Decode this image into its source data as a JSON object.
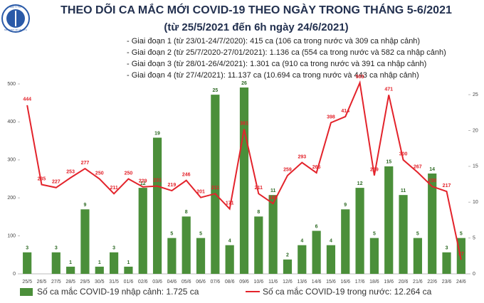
{
  "chart_data": {
    "type": "bar-line",
    "title": "THEO DÕI CA MẮC MỚI COVID-19 THEO NGÀY TRONG THÁNG 5-6/2021",
    "subtitle": "(từ 25/5/2021 đến 6h ngày 24/6/2021)",
    "logo_text": [
      "BỘ Y TẾ",
      "MINISTRY OF HEALTH"
    ],
    "annotations": [
      "- Giai đoạn 1 (từ 23/01-24/7/2020): 415 ca (106 ca trong nước và 309 ca nhập cảnh)",
      "- Giai đoạn 2 (từ 25/7/2020-27/01/2021): 1.136 ca (554 ca trong nước và 582 ca nhập cảnh)",
      "- Giai đoạn 3 (từ 28/01-26/4/2021): 1.301 ca (910 ca trong nước và 391 ca nhập cảnh)",
      "- Giai đoạn 4 (từ 27/4/2021): 11.137 ca (10.694 ca trong nước và 443 ca nhập cảnh)"
    ],
    "categories": [
      "25/5",
      "26/5",
      "27/5",
      "28/5",
      "29/5",
      "30/5",
      "31/5",
      "01/6",
      "02/6",
      "03/6",
      "04/6",
      "05/6",
      "06/6",
      "07/6",
      "08/6",
      "09/6",
      "10/6",
      "11/6",
      "12/6",
      "13/6",
      "14/6",
      "15/6",
      "16/6",
      "17/6",
      "18/6",
      "19/6",
      "20/6",
      "21/6",
      "22/6",
      "23/6",
      "24/6"
    ],
    "series": [
      {
        "name": "Số ca mắc COVID-19 nhập cảnh: 1.725 ca",
        "type": "bar",
        "axis": "y2",
        "color": "#4b8f3a",
        "values": [
          3,
          null,
          3,
          1,
          9,
          1,
          3,
          1,
          12,
          19,
          5,
          8,
          5,
          25,
          4,
          26,
          8,
          11,
          2,
          4,
          6,
          4,
          9,
          12,
          5,
          15,
          11,
          5,
          14,
          3,
          5
        ]
      },
      {
        "name": "Số ca mắc COVID-19 trong nước: 12.264 ca",
        "type": "line",
        "axis": "y",
        "color": "#e3232b",
        "values": [
          444,
          235,
          227,
          253,
          277,
          250,
          211,
          250,
          229,
          231,
          219,
          246,
          201,
          211,
          171,
          381,
          211,
          185,
          259,
          293,
          266,
          398,
          414,
          503,
          259,
          471,
          300,
          267,
          230,
          217,
          37
        ]
      }
    ],
    "ylim": [
      0,
      500
    ],
    "yticks": [
      0,
      100,
      200,
      300,
      400,
      500
    ],
    "y2lim": [
      0,
      26.5
    ],
    "y2ticks": [
      0,
      5,
      10,
      15,
      20,
      25
    ],
    "grid": false
  }
}
